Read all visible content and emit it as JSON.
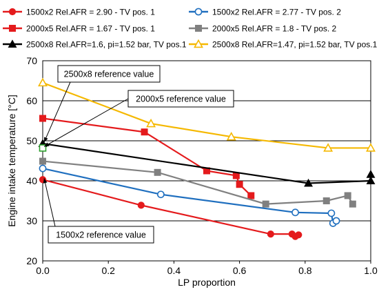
{
  "chart_data": {
    "type": "line",
    "xlabel": "LP proportion",
    "ylabel": "Engine intake temperature [°C]",
    "xlim": [
      0,
      1.0
    ],
    "ylim": [
      20,
      70
    ],
    "x_ticks": [
      "0.0",
      "0.2",
      "0.4",
      "0.6",
      "0.8",
      "1.0"
    ],
    "y_ticks": [
      "20",
      "30",
      "40",
      "50",
      "60",
      "70"
    ],
    "grid": "horizontal",
    "legend_position": "top",
    "series": [
      {
        "name": "1500x2 Rel.AFR = 2.90 - TV pos. 1",
        "color": "#e41a1c",
        "marker": "circle",
        "filled": true,
        "line": "solid",
        "x": [
          0.0,
          0.3,
          0.695,
          0.76,
          0.77,
          0.78
        ],
        "y": [
          40.3,
          33.9,
          26.7,
          26.7,
          26.1,
          26.5
        ]
      },
      {
        "name": "1500x2 Rel.AFR = 2.77 - TV pos. 2",
        "color": "#1f6fbf",
        "marker": "circle",
        "filled": false,
        "line": "solid",
        "x": [
          0.0,
          0.36,
          0.77,
          0.88,
          0.885,
          0.895
        ],
        "y": [
          43.1,
          36.6,
          32.1,
          31.9,
          29.4,
          30.0
        ]
      },
      {
        "name": "2000x5 Rel.AFR = 1.67 - TV pos. 1",
        "color": "#e41a1c",
        "marker": "square",
        "filled": true,
        "line": "solid",
        "x": [
          0.0,
          0.31,
          0.5,
          0.59,
          0.6,
          0.635
        ],
        "y": [
          55.6,
          52.2,
          42.5,
          41.3,
          39.1,
          36.3
        ]
      },
      {
        "name": "2000x5 Rel.AFR = 1.8 - TV pos. 2",
        "color": "#808080",
        "marker": "square",
        "filled": true,
        "line": "solid",
        "x": [
          0.0,
          0.35,
          0.68,
          0.865,
          0.93,
          0.945
        ],
        "y": [
          44.9,
          42.1,
          34.2,
          35.0,
          36.3,
          34.2
        ]
      },
      {
        "name": "2500x8 Rel.AFR=1.6, pi=1.52 bar, TV pos.1",
        "color": "#000000",
        "marker": "triangle",
        "filled": true,
        "line": "solid",
        "x": [
          0.0,
          0.81,
          1.0,
          1.0
        ],
        "y": [
          49.3,
          39.4,
          40.0,
          41.6
        ]
      },
      {
        "name": "2500x8 Rel.AFR=1.47, pi=1.52 bar, TV pos.1",
        "color": "#f5b800",
        "marker": "triangle",
        "filled": false,
        "line": "solid",
        "x": [
          0.0,
          0.33,
          0.575,
          0.87,
          1.0
        ],
        "y": [
          64.5,
          54.3,
          51.0,
          48.2,
          48.2
        ]
      }
    ],
    "annotations": [
      {
        "text": "2500x8 reference value",
        "x": 0.0,
        "y": 49.3,
        "color": "#000000"
      },
      {
        "text": "2000x5 reference value",
        "x": 0.0,
        "y": 48.2,
        "color": "#2ca02c"
      },
      {
        "text": "1500x2 reference value",
        "x": 0.0,
        "y": 40.3,
        "color": "#e41a1c"
      }
    ]
  }
}
